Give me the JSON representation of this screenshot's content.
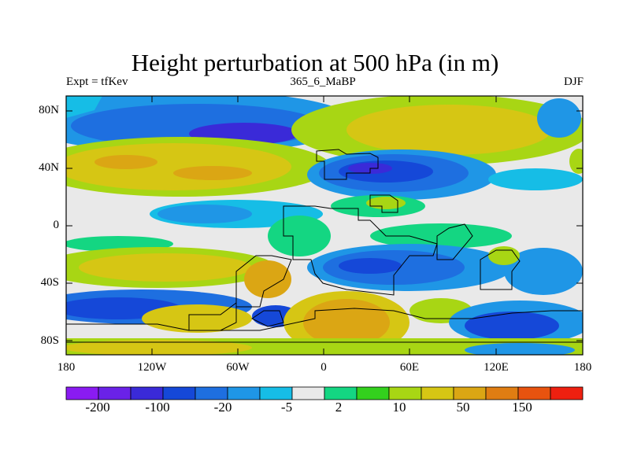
{
  "title": "Height perturbation at 500 hPa (in m)",
  "subtitle": {
    "left": "Expt = tfKev",
    "center": "365_6_MaBP",
    "right": "DJF"
  },
  "y_ticks": [
    "80N",
    "40N",
    "0",
    "40S",
    "80S"
  ],
  "x_ticks": [
    "180",
    "120W",
    "60W",
    "0",
    "60E",
    "120E",
    "180"
  ],
  "colorbar": {
    "labels": [
      "-200",
      "-100",
      "-20",
      "-5",
      "2",
      "10",
      "50",
      "150"
    ],
    "colors": [
      "#8a1bf2",
      "#6a22e8",
      "#3a2ad8",
      "#1548d8",
      "#1e6fe0",
      "#1f96e6",
      "#16bde6",
      "#e9e9e9",
      "#14d682",
      "#33d11d",
      "#a8d614",
      "#d6c614",
      "#dba614",
      "#e07d12",
      "#e8530f",
      "#ee2010"
    ]
  },
  "colors": {
    "frame": "#000000",
    "background": "#ffffff"
  }
}
